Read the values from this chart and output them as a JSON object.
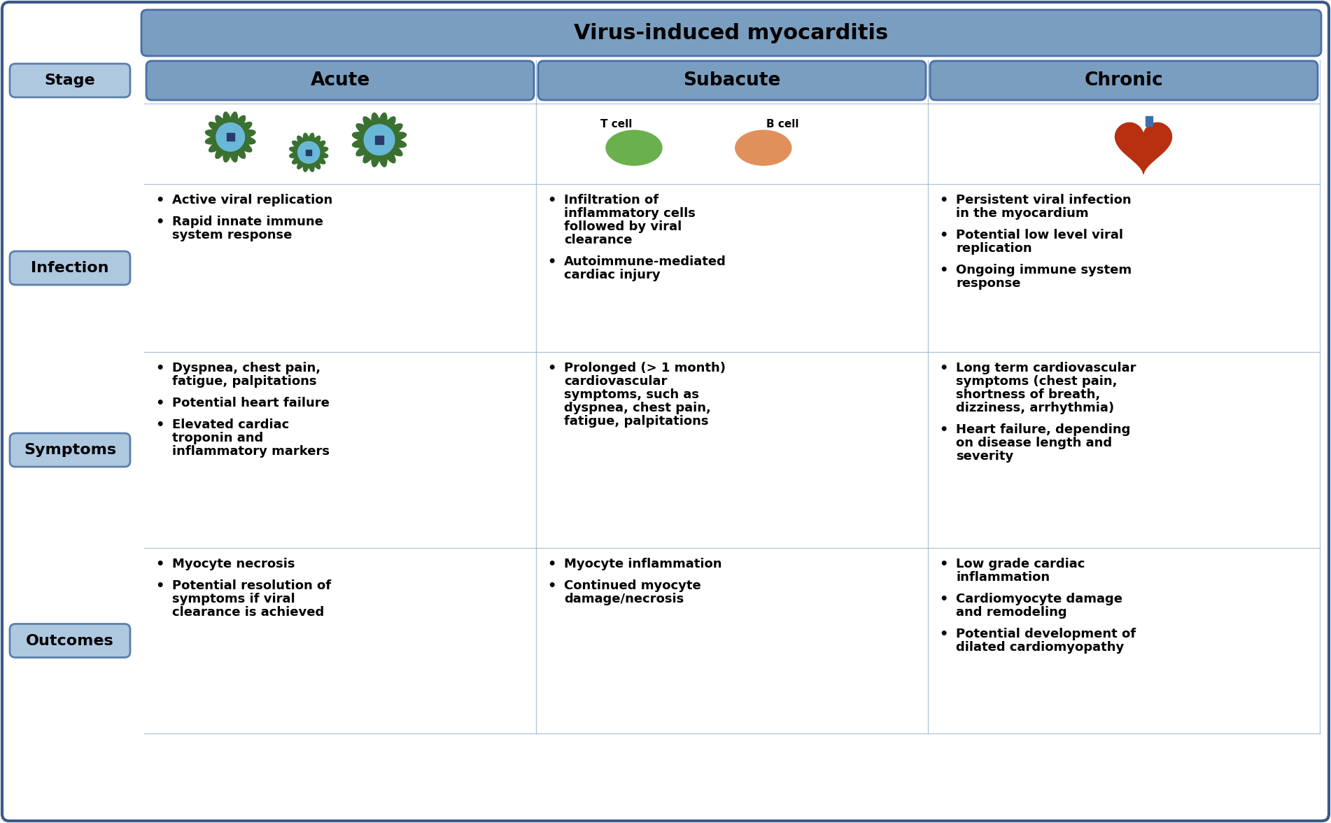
{
  "title": "Virus-induced myocarditis",
  "bg": "#ffffff",
  "border_color": "#3a5a8a",
  "header_fill": "#7a9ec0",
  "header_edge": "#4a6fa5",
  "label_fill": "#aec8e0",
  "label_edge": "#5a80aa",
  "acute_infection": [
    "Active viral replication",
    "Rapid innate immune\nsystem response"
  ],
  "acute_symptoms": [
    "Dyspnea, chest pain,\nfatigue, palpitations",
    "Potential heart failure",
    "Elevated cardiac\ntroponin and\ninflammatory markers"
  ],
  "acute_outcomes": [
    "Myocyte necrosis",
    "Potential resolution of\nsymptoms if viral\nclearance is achieved"
  ],
  "subacute_infection": [
    "Infiltration of\ninflammatory cells\nfollowed by viral\nclearance",
    "Autoimmune-mediated\ncardiac injury"
  ],
  "subacute_symptoms": [
    "Prolonged (> 1 month)\ncardiovascular\nsymptoms, such as\ndyspnea, chest pain,\nfatigue, palpitations"
  ],
  "subacute_outcomes": [
    "Myocyte inflammation",
    "Continued myocyte\ndamage/necrosis"
  ],
  "chronic_infection": [
    "Persistent viral infection\nin the myocardium",
    "Potential low level viral\nreplication",
    "Ongoing immune system\nresponse"
  ],
  "chronic_symptoms": [
    "Long term cardiovascular\nsymptoms (chest pain,\nshortness of breath,\ndizziness, arrhythmia)",
    "Heart failure, depending\non disease length and\nseverity"
  ],
  "chronic_outcomes": [
    "Low grade cardiac\ninflammation",
    "Cardiomyocyte damage\nand remodeling",
    "Potential development of\ndilated cardiomyopathy"
  ],
  "title_fs": 22,
  "header_fs": 19,
  "label_fs": 16,
  "body_fs": 13
}
